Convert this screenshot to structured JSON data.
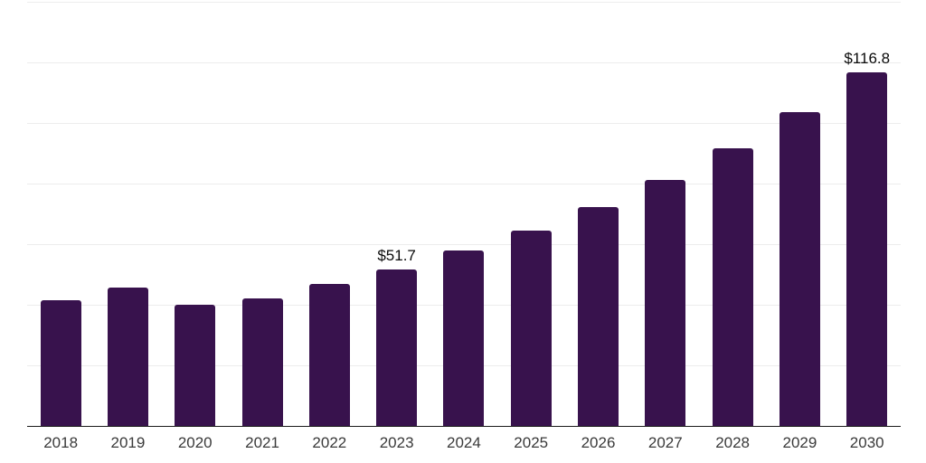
{
  "chart_data": {
    "type": "bar",
    "title": "",
    "xlabel": "",
    "ylabel": "",
    "categories": [
      "2018",
      "2019",
      "2020",
      "2021",
      "2022",
      "2023",
      "2024",
      "2025",
      "2026",
      "2027",
      "2028",
      "2029",
      "2030"
    ],
    "values": [
      41.5,
      45.8,
      39.9,
      42.1,
      46.9,
      51.7,
      57.9,
      64.5,
      72.3,
      81.2,
      91.6,
      103.5,
      116.8
    ],
    "data_labels": {
      "2023": "$51.7",
      "2030": "$116.8"
    },
    "unit_prefix": "$",
    "ylim": [
      0,
      140
    ],
    "gridline_interval": 20,
    "grid": true,
    "legend": false,
    "axis_tick_labels_visible": "x-only"
  },
  "colors": {
    "background": "#FFFFFF",
    "bar": "#38124D",
    "gridline": "#EDEDED",
    "axis_line": "#1A1A1A",
    "tick_label": "#3A3A3A",
    "data_label": "#0A0A0A"
  }
}
